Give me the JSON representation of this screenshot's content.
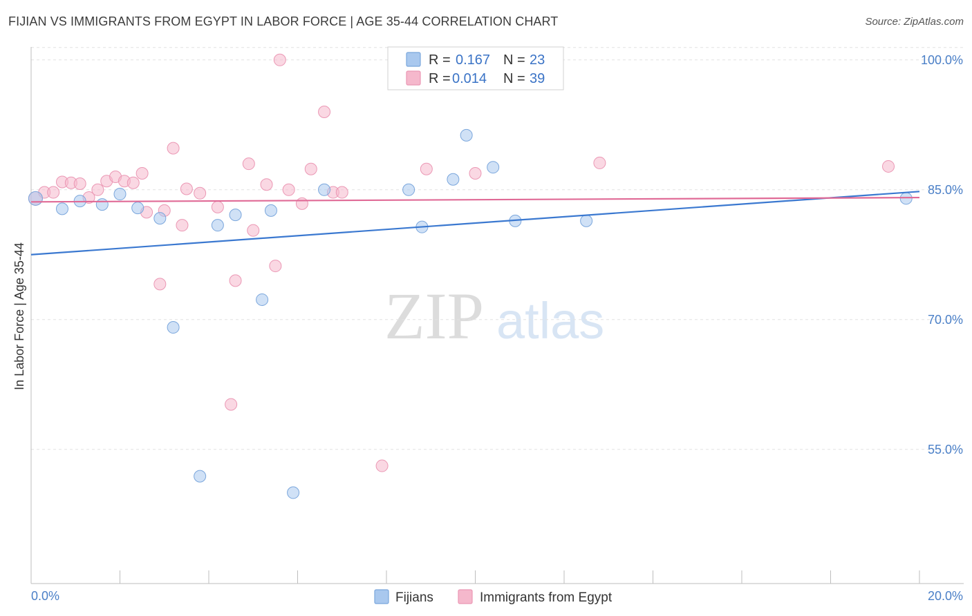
{
  "title": "FIJIAN VS IMMIGRANTS FROM EGYPT IN LABOR FORCE | AGE 35-44 CORRELATION CHART",
  "source": "Source: ZipAtlas.com",
  "watermark": {
    "zip": "ZIP",
    "atlas": "atlas"
  },
  "chart_data": {
    "type": "scatter",
    "title": "FIJIAN VS IMMIGRANTS FROM EGYPT IN LABOR FORCE | AGE 35-44 CORRELATION CHART",
    "xlabel": "",
    "ylabel": "In Labor Force | Age 35-44",
    "xlim": [
      0,
      20
    ],
    "ylim": [
      39.5,
      101.5
    ],
    "x_tick_labels": [
      "0.0%",
      "20.0%"
    ],
    "y_ticks": [
      55,
      70,
      85,
      100
    ],
    "y_tick_labels": [
      "55.0%",
      "70.0%",
      "85.0%",
      "100.0%"
    ],
    "grid": true,
    "legend_stats": [
      {
        "r_label": "R =",
        "r_value": "0.167",
        "n_label": "N =",
        "n_value": "23"
      },
      {
        "r_label": "R =",
        "r_value": "0.014",
        "n_label": "N =",
        "n_value": "39"
      }
    ],
    "series": [
      {
        "name": "Fijians",
        "color": "#a9c8ee",
        "line_color": "#3a78d0",
        "trend": {
          "x": [
            0,
            20
          ],
          "y": [
            77.5,
            84.8
          ]
        },
        "points": [
          {
            "x": 0.1,
            "y": 84.0
          },
          {
            "x": 0.7,
            "y": 82.8
          },
          {
            "x": 1.1,
            "y": 83.7
          },
          {
            "x": 1.6,
            "y": 83.3
          },
          {
            "x": 2.0,
            "y": 84.5
          },
          {
            "x": 2.4,
            "y": 82.9
          },
          {
            "x": 2.9,
            "y": 81.7
          },
          {
            "x": 3.2,
            "y": 69.1
          },
          {
            "x": 3.8,
            "y": 51.9
          },
          {
            "x": 4.2,
            "y": 80.9
          },
          {
            "x": 4.6,
            "y": 82.1
          },
          {
            "x": 5.2,
            "y": 72.3
          },
          {
            "x": 5.4,
            "y": 82.6
          },
          {
            "x": 5.9,
            "y": 50.0
          },
          {
            "x": 6.6,
            "y": 85.0
          },
          {
            "x": 8.5,
            "y": 85.0
          },
          {
            "x": 8.8,
            "y": 80.7
          },
          {
            "x": 9.5,
            "y": 86.2
          },
          {
            "x": 9.8,
            "y": 91.3
          },
          {
            "x": 10.4,
            "y": 87.6
          },
          {
            "x": 10.9,
            "y": 81.4
          },
          {
            "x": 12.5,
            "y": 81.4
          },
          {
            "x": 19.7,
            "y": 84.0
          }
        ]
      },
      {
        "name": "Immigrants from Egypt",
        "color": "#f5b8cc",
        "line_color": "#e06a96",
        "trend": {
          "x": [
            0,
            20
          ],
          "y": [
            83.6,
            84.1
          ]
        },
        "points": [
          {
            "x": 0.1,
            "y": 84.0
          },
          {
            "x": 0.3,
            "y": 84.7
          },
          {
            "x": 0.5,
            "y": 84.7
          },
          {
            "x": 0.7,
            "y": 85.9
          },
          {
            "x": 0.9,
            "y": 85.8
          },
          {
            "x": 1.1,
            "y": 85.7
          },
          {
            "x": 1.3,
            "y": 84.1
          },
          {
            "x": 1.5,
            "y": 85.0
          },
          {
            "x": 1.7,
            "y": 86.0
          },
          {
            "x": 1.9,
            "y": 86.5
          },
          {
            "x": 2.1,
            "y": 86.0
          },
          {
            "x": 2.3,
            "y": 85.8
          },
          {
            "x": 2.5,
            "y": 86.9
          },
          {
            "x": 2.6,
            "y": 82.4
          },
          {
            "x": 2.9,
            "y": 74.1
          },
          {
            "x": 3.0,
            "y": 82.6
          },
          {
            "x": 3.2,
            "y": 89.8
          },
          {
            "x": 3.4,
            "y": 80.9
          },
          {
            "x": 3.5,
            "y": 85.1
          },
          {
            "x": 3.8,
            "y": 84.6
          },
          {
            "x": 4.2,
            "y": 83.0
          },
          {
            "x": 4.5,
            "y": 60.2
          },
          {
            "x": 4.6,
            "y": 74.5
          },
          {
            "x": 4.9,
            "y": 88.0
          },
          {
            "x": 5.0,
            "y": 80.3
          },
          {
            "x": 5.3,
            "y": 85.6
          },
          {
            "x": 5.5,
            "y": 76.2
          },
          {
            "x": 5.6,
            "y": 100.0
          },
          {
            "x": 5.8,
            "y": 85.0
          },
          {
            "x": 6.1,
            "y": 83.4
          },
          {
            "x": 6.3,
            "y": 87.4
          },
          {
            "x": 6.6,
            "y": 94.0
          },
          {
            "x": 6.8,
            "y": 84.7
          },
          {
            "x": 7.0,
            "y": 84.7
          },
          {
            "x": 7.9,
            "y": 53.1
          },
          {
            "x": 8.9,
            "y": 87.4
          },
          {
            "x": 10.0,
            "y": 86.9
          },
          {
            "x": 12.8,
            "y": 88.1
          },
          {
            "x": 19.3,
            "y": 87.7
          }
        ]
      }
    ]
  }
}
